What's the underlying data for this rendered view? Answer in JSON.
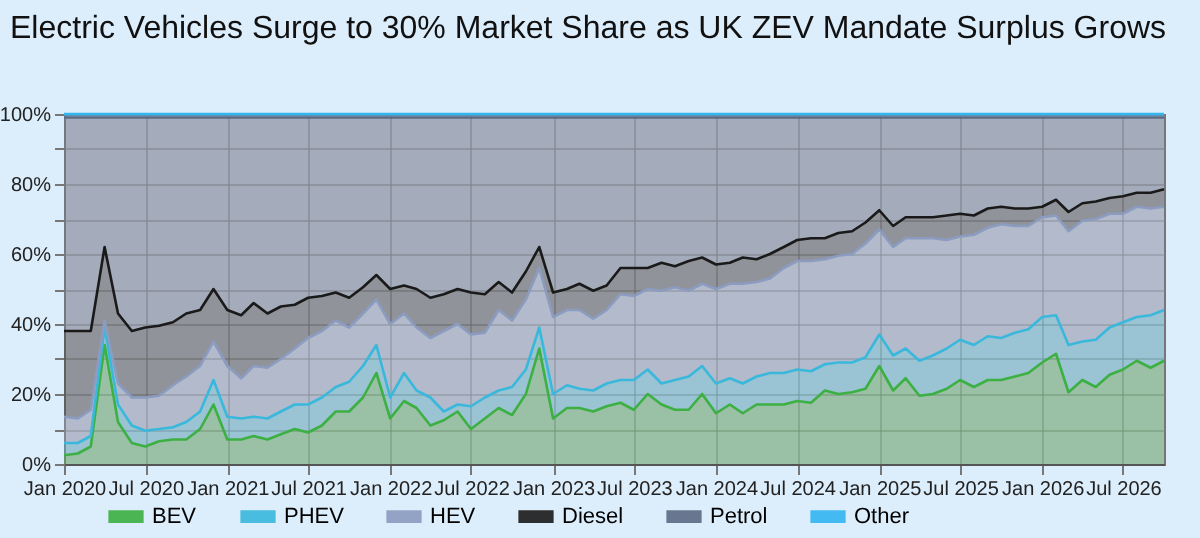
{
  "chart_data": {
    "type": "area",
    "stacked": true,
    "title": "Electric Vehicles Surge to 30% Market Share as UK ZEV Mandate Surplus Grows",
    "x": [
      "2020-01",
      "2020-02",
      "2020-03",
      "2020-04",
      "2020-05",
      "2020-06",
      "2020-07",
      "2020-08",
      "2020-09",
      "2020-10",
      "2020-11",
      "2020-12",
      "2021-01",
      "2021-02",
      "2021-03",
      "2021-04",
      "2021-05",
      "2021-06",
      "2021-07",
      "2021-08",
      "2021-09",
      "2021-10",
      "2021-11",
      "2021-12",
      "2022-01",
      "2022-02",
      "2022-03",
      "2022-04",
      "2022-05",
      "2022-06",
      "2022-07",
      "2022-08",
      "2022-09",
      "2022-10",
      "2022-11",
      "2022-12",
      "2023-01",
      "2023-02",
      "2023-03",
      "2023-04",
      "2023-05",
      "2023-06",
      "2023-07",
      "2023-08",
      "2023-09",
      "2023-10",
      "2023-11",
      "2023-12",
      "2024-01",
      "2024-02",
      "2024-03",
      "2024-04",
      "2024-05",
      "2024-06",
      "2024-07",
      "2024-08",
      "2024-09",
      "2024-10",
      "2024-11",
      "2024-12",
      "2025-01",
      "2025-02",
      "2025-03",
      "2025-04",
      "2025-05",
      "2025-06",
      "2025-07",
      "2025-08",
      "2025-09",
      "2025-10",
      "2025-11",
      "2025-12",
      "2026-01",
      "2026-02",
      "2026-03",
      "2026-04",
      "2026-05",
      "2026-06",
      "2026-07",
      "2026-08",
      "2026-09",
      "2026-10"
    ],
    "series": [
      {
        "name": "BEV",
        "color": "#3cb043",
        "values": [
          2.5,
          3,
          5,
          34,
          12,
          6,
          5,
          6.5,
          7,
          7,
          10,
          17,
          7,
          7,
          8,
          7,
          8.5,
          10,
          9,
          11,
          15,
          15,
          19,
          26,
          13,
          18,
          16,
          11,
          12.5,
          15,
          10,
          13,
          16,
          14,
          20,
          33,
          13,
          16,
          16,
          15,
          16.5,
          17.5,
          15.5,
          20,
          17,
          15.5,
          15.5,
          20,
          14.5,
          17,
          14.5,
          17,
          17,
          17,
          18,
          17.5,
          21,
          20,
          20.5,
          21.5,
          28,
          21,
          24.5,
          19.5,
          20,
          21.5,
          24,
          22,
          24,
          24,
          25,
          26,
          29,
          31.5,
          20.5,
          24,
          22,
          25.5,
          27,
          29.5,
          27.5,
          29.5
        ]
      },
      {
        "name": "PHEV",
        "color": "#3ab8dc",
        "values": [
          3.5,
          3,
          3,
          5,
          5,
          5,
          4.5,
          3.5,
          3.5,
          5,
          5,
          7,
          6.5,
          6,
          5.5,
          6,
          6.5,
          7,
          8,
          8,
          7,
          8.5,
          9,
          8,
          6,
          8,
          5,
          8,
          2.5,
          2,
          6.5,
          6,
          5,
          8,
          7,
          6,
          7,
          6.5,
          5.5,
          6,
          6.5,
          6.5,
          8.5,
          7,
          6,
          8.5,
          9.5,
          8,
          8.5,
          7.5,
          8.5,
          8,
          9,
          9,
          9,
          9,
          7.5,
          9,
          8.5,
          9,
          9,
          10,
          8.5,
          10,
          11,
          11.5,
          11.5,
          12,
          12.5,
          12,
          12.5,
          12.5,
          13,
          11,
          13.5,
          11,
          13.5,
          13.5,
          13.5,
          12.5,
          15,
          14.5
        ]
      },
      {
        "name": "HEV",
        "color": "#8c9cc0",
        "values": [
          7.5,
          7,
          7.5,
          2,
          6,
          8,
          9.5,
          9.5,
          12,
          13,
          13,
          11,
          14.5,
          11.5,
          14.5,
          14.5,
          15,
          16,
          19,
          19,
          19,
          15.5,
          15,
          13,
          21,
          17,
          18,
          17,
          23,
          23,
          20.5,
          18.5,
          23,
          19,
          20,
          17,
          22,
          21.5,
          22.5,
          20.5,
          21,
          24.5,
          24,
          23,
          26.5,
          26.5,
          24.5,
          23.5,
          27,
          27,
          28.5,
          27,
          27,
          30,
          31,
          31.5,
          30,
          30.5,
          31,
          32.5,
          30,
          31,
          31.5,
          35,
          33.5,
          31,
          29.5,
          31.5,
          31,
          32.5,
          30.5,
          29.5,
          28.5,
          28.5,
          32.5,
          34.5,
          34.5,
          32.5,
          31,
          31.5,
          30.5,
          29.5
        ]
      },
      {
        "name": "Diesel",
        "color": "#1a1a1a",
        "values": [
          24.5,
          25,
          22.5,
          21,
          20,
          19,
          20,
          20,
          18,
          18,
          16,
          15,
          16,
          18,
          18,
          15.5,
          15,
          12.5,
          11.5,
          10,
          8,
          8.5,
          7.5,
          7,
          10,
          8,
          11,
          11.5,
          10.5,
          10,
          12,
          11,
          8,
          8,
          8,
          6,
          7,
          6,
          7.5,
          8,
          7,
          7.5,
          8,
          6,
          8,
          6,
          8.5,
          7.5,
          7,
          6,
          7.5,
          6.5,
          7,
          6,
          6,
          6.5,
          6,
          6.5,
          6.5,
          6,
          5.5,
          6,
          6,
          6,
          6,
          7,
          6.5,
          5.5,
          5.5,
          5,
          5,
          5,
          3,
          4.5,
          5.5,
          5,
          5,
          4.5,
          5,
          4,
          4.5,
          5
        ]
      },
      {
        "name": "Petrol",
        "color": "#5c6a84",
        "values": [
          61,
          61,
          61,
          37,
          56,
          61,
          60,
          59.5,
          58.5,
          56,
          55,
          49,
          55,
          56.5,
          53,
          56,
          54,
          53.5,
          51.5,
          51,
          50,
          51.5,
          48.5,
          45,
          49,
          48,
          49,
          51.5,
          50.5,
          49,
          50,
          50.5,
          47,
          50,
          44,
          37,
          50,
          49,
          47.5,
          49.5,
          48,
          43,
          43,
          43,
          41.5,
          42.5,
          41,
          40,
          42,
          41.5,
          40,
          40.5,
          39,
          37,
          35,
          34.5,
          34.5,
          33,
          32.5,
          30,
          26.5,
          31,
          28.5,
          28.5,
          28.5,
          28,
          27.5,
          28,
          26,
          25.5,
          26,
          26,
          25.5,
          23.5,
          27,
          24.5,
          24,
          23,
          22.5,
          21.5,
          21.5,
          20.5
        ]
      },
      {
        "name": "Other",
        "color": "#33b5f0",
        "values": [
          1,
          1,
          1,
          1,
          1,
          1,
          1,
          1,
          1,
          1,
          1,
          1,
          1,
          1,
          1,
          1,
          1,
          1,
          1,
          1,
          1,
          1,
          1,
          1,
          1,
          1,
          1,
          1,
          1,
          1,
          1,
          1,
          1,
          1,
          1,
          1,
          1,
          1,
          1,
          1,
          1,
          1,
          1,
          1,
          1,
          1,
          1,
          1,
          1,
          1,
          1,
          1,
          1,
          1,
          1,
          1,
          1,
          1,
          1,
          1,
          1,
          1,
          1,
          1,
          1,
          1,
          1,
          1,
          1,
          1,
          1,
          1,
          1,
          1,
          1,
          1,
          1,
          1,
          1,
          1,
          1,
          1
        ]
      }
    ],
    "xlim": [
      "2020-01",
      "2026-10"
    ],
    "xticks": [
      {
        "value": "2020-01",
        "label": "Jan 2020"
      },
      {
        "value": "2020-07",
        "label": "Jul 2020"
      },
      {
        "value": "2021-01",
        "label": "Jan 2021"
      },
      {
        "value": "2021-07",
        "label": "Jul 2021"
      },
      {
        "value": "2022-01",
        "label": "Jan 2022"
      },
      {
        "value": "2022-07",
        "label": "Jul 2022"
      },
      {
        "value": "2023-01",
        "label": "Jan 2023"
      },
      {
        "value": "2023-07",
        "label": "Jul 2023"
      },
      {
        "value": "2024-01",
        "label": "Jan 2024"
      },
      {
        "value": "2024-07",
        "label": "Jul 2024"
      },
      {
        "value": "2025-01",
        "label": "Jan 2025"
      },
      {
        "value": "2025-07",
        "label": "Jul 2025"
      },
      {
        "value": "2026-01",
        "label": "Jan 2026"
      },
      {
        "value": "2026-07",
        "label": "Jul 2026"
      }
    ],
    "ylim": [
      0,
      100
    ],
    "yticks": [
      {
        "value": 0,
        "label": "0%"
      },
      {
        "value": 10,
        "label": null
      },
      {
        "value": 20,
        "label": "20%"
      },
      {
        "value": 30,
        "label": null
      },
      {
        "value": 40,
        "label": "40%"
      },
      {
        "value": 50,
        "label": null
      },
      {
        "value": 60,
        "label": "60%"
      },
      {
        "value": 70,
        "label": null
      },
      {
        "value": 80,
        "label": "80%"
      },
      {
        "value": 90,
        "label": null
      },
      {
        "value": 100,
        "label": "100%"
      }
    ],
    "grid": true,
    "legend": "bottom",
    "line_style": "solid"
  }
}
